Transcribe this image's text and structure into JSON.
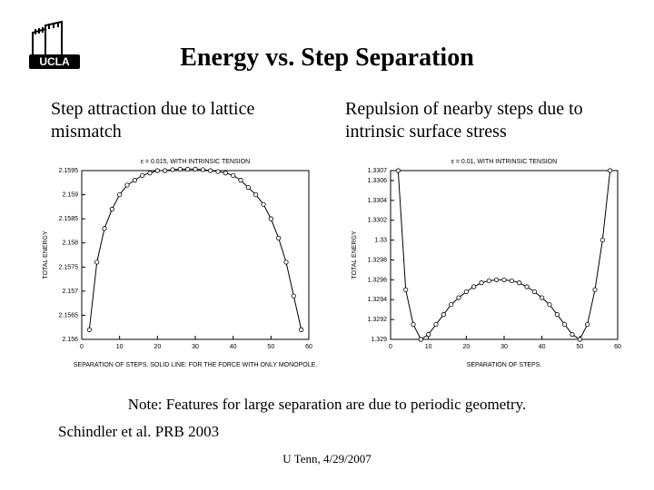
{
  "title": "Energy vs. Step Separation",
  "subtitle_left": "Step attraction due to lattice mismatch",
  "subtitle_right": "Repulsion of nearby steps due to intrinsic surface stress",
  "note": "Note: Features for large separation are due to periodic geometry.",
  "citation": "Schindler et al.  PRB 2003",
  "footer": "U Tenn, 4/29/2007",
  "chart_left": {
    "type": "scatter+line",
    "title": "ε = 0.015, WITH INTRINSIC TENSION",
    "xlabel": "SEPARATION OF STEPS. SOLID LINE: FOR THE FORCE WITH ONLY MONOPOLE.",
    "ylabel": "TOTAL ENERGY",
    "xlim": [
      0,
      60
    ],
    "xtick_step": 10,
    "yticks": [
      2.156,
      2.1565,
      2.157,
      2.1575,
      2.158,
      2.1585,
      2.159,
      2.1595
    ],
    "ylim": [
      2.156,
      2.1595
    ],
    "line_color": "#000000",
    "marker_color": "#000000",
    "background_color": "#ffffff",
    "data": [
      {
        "x": 2,
        "y": 2.1562
      },
      {
        "x": 4,
        "y": 2.1576
      },
      {
        "x": 6,
        "y": 2.1583
      },
      {
        "x": 8,
        "y": 2.1587
      },
      {
        "x": 10,
        "y": 2.159
      },
      {
        "x": 12,
        "y": 2.1592
      },
      {
        "x": 14,
        "y": 2.1593
      },
      {
        "x": 16,
        "y": 2.1594
      },
      {
        "x": 18,
        "y": 2.15945
      },
      {
        "x": 20,
        "y": 2.1595
      },
      {
        "x": 22,
        "y": 2.1595
      },
      {
        "x": 24,
        "y": 2.15952
      },
      {
        "x": 26,
        "y": 2.15953
      },
      {
        "x": 28,
        "y": 2.15953
      },
      {
        "x": 30,
        "y": 2.15953
      },
      {
        "x": 32,
        "y": 2.15952
      },
      {
        "x": 34,
        "y": 2.1595
      },
      {
        "x": 36,
        "y": 2.15948
      },
      {
        "x": 38,
        "y": 2.15945
      },
      {
        "x": 40,
        "y": 2.1594
      },
      {
        "x": 42,
        "y": 2.1593
      },
      {
        "x": 44,
        "y": 2.15915
      },
      {
        "x": 46,
        "y": 2.159
      },
      {
        "x": 48,
        "y": 2.1588
      },
      {
        "x": 50,
        "y": 2.1585
      },
      {
        "x": 52,
        "y": 2.1581
      },
      {
        "x": 54,
        "y": 2.1576
      },
      {
        "x": 56,
        "y": 2.1569
      },
      {
        "x": 58,
        "y": 2.1562
      }
    ]
  },
  "chart_right": {
    "type": "scatter+line",
    "title": "ε = 0.01, WITH INTRINSIC TENSION",
    "xlabel": "SEPARATION OF STEPS.",
    "ylabel": "TOTAL ENERGY",
    "xlim": [
      0,
      60
    ],
    "xtick_step": 10,
    "yticks": [
      1.329,
      1.3292,
      1.3294,
      1.3296,
      1.3298,
      1.33,
      1.3302,
      1.3304,
      1.3306,
      1.3307
    ],
    "ylim": [
      1.329,
      1.3307
    ],
    "line_color": "#000000",
    "marker_color": "#000000",
    "background_color": "#ffffff",
    "data": [
      {
        "x": 2,
        "y": 1.3307
      },
      {
        "x": 4,
        "y": 1.3295
      },
      {
        "x": 6,
        "y": 1.32915
      },
      {
        "x": 8,
        "y": 1.329
      },
      {
        "x": 10,
        "y": 1.32905
      },
      {
        "x": 12,
        "y": 1.32915
      },
      {
        "x": 14,
        "y": 1.32925
      },
      {
        "x": 16,
        "y": 1.32935
      },
      {
        "x": 18,
        "y": 1.32942
      },
      {
        "x": 20,
        "y": 1.32948
      },
      {
        "x": 22,
        "y": 1.32953
      },
      {
        "x": 24,
        "y": 1.32957
      },
      {
        "x": 26,
        "y": 1.32959
      },
      {
        "x": 28,
        "y": 1.3296
      },
      {
        "x": 30,
        "y": 1.3296
      },
      {
        "x": 32,
        "y": 1.32959
      },
      {
        "x": 34,
        "y": 1.32957
      },
      {
        "x": 36,
        "y": 1.32953
      },
      {
        "x": 38,
        "y": 1.32948
      },
      {
        "x": 40,
        "y": 1.32942
      },
      {
        "x": 42,
        "y": 1.32935
      },
      {
        "x": 44,
        "y": 1.32925
      },
      {
        "x": 46,
        "y": 1.32915
      },
      {
        "x": 48,
        "y": 1.32905
      },
      {
        "x": 50,
        "y": 1.329
      },
      {
        "x": 52,
        "y": 1.32915
      },
      {
        "x": 54,
        "y": 1.3295
      },
      {
        "x": 56,
        "y": 1.33
      },
      {
        "x": 58,
        "y": 1.3307
      }
    ]
  }
}
